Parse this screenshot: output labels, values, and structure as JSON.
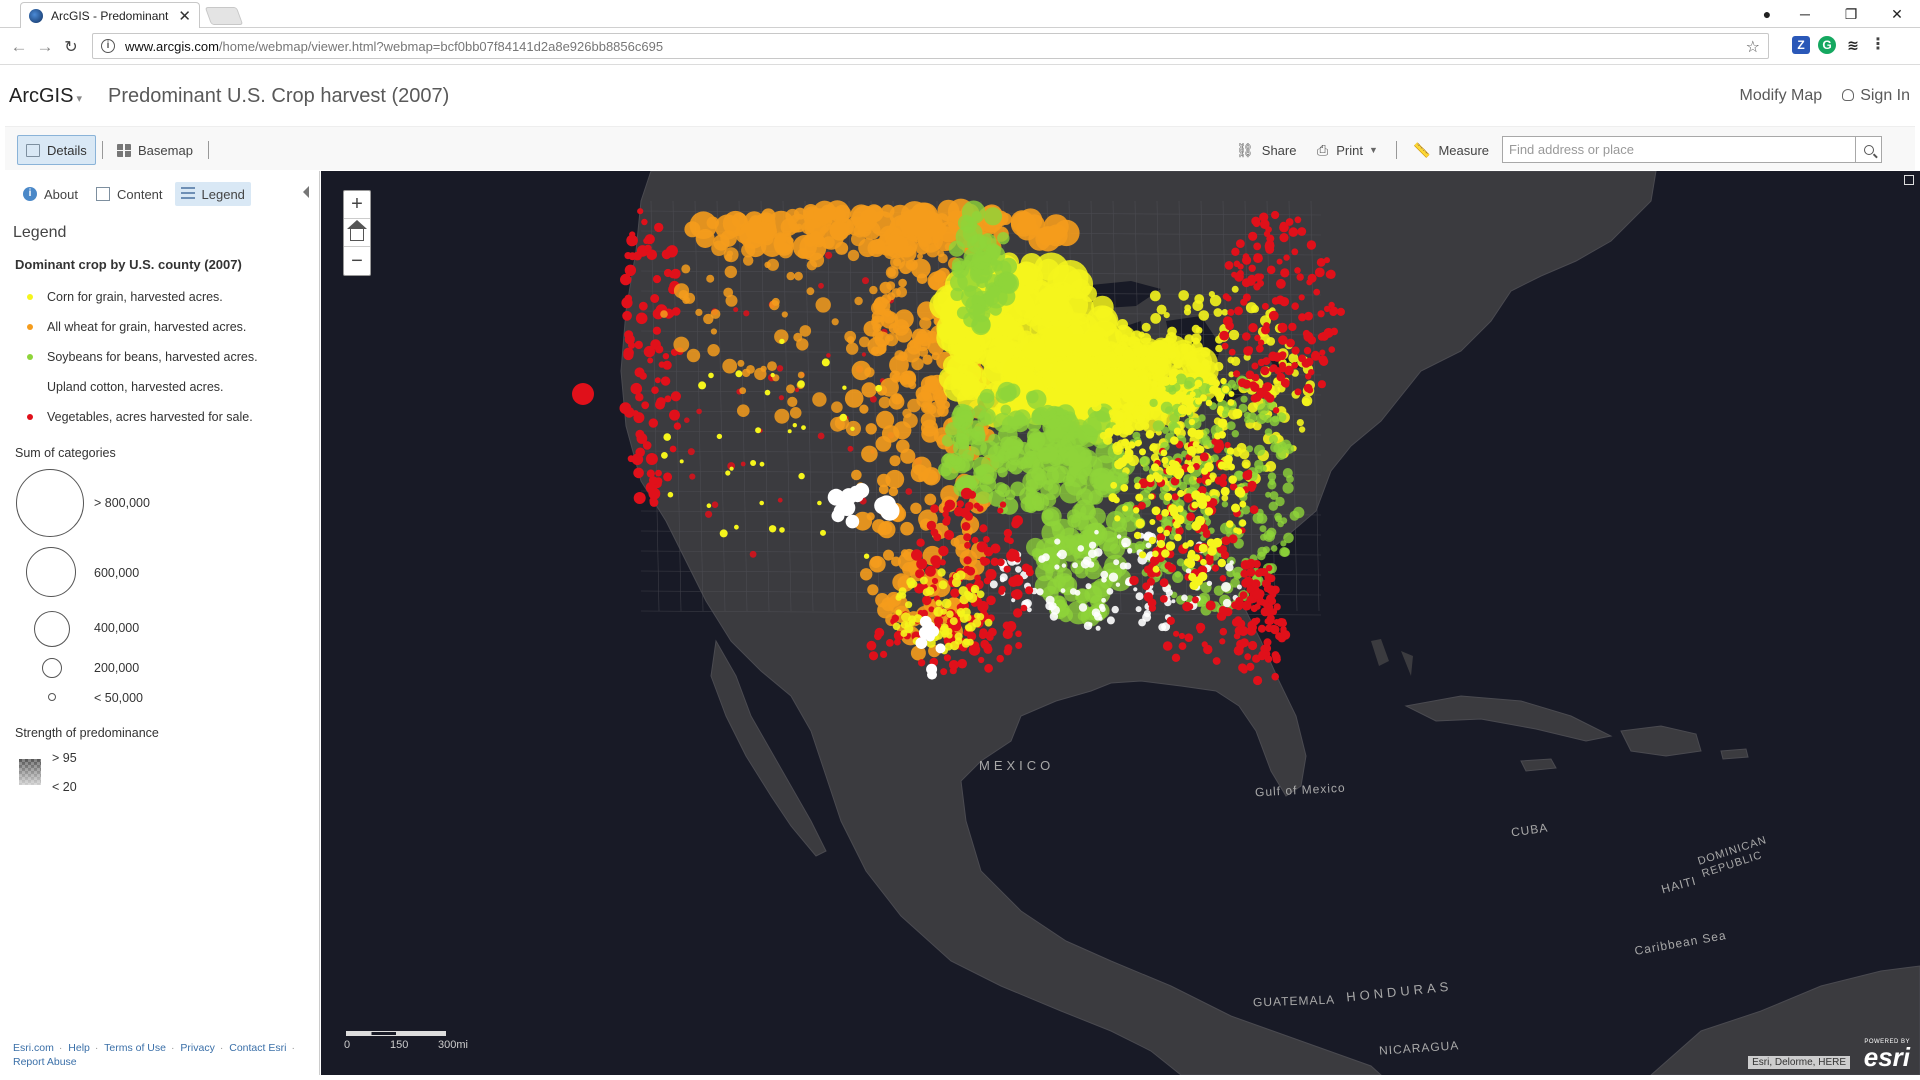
{
  "browser": {
    "tab_title": "ArcGIS - Predominant U.S...",
    "url_host": "www.arcgis.com",
    "url_path": "/home/webmap/viewer.html?webmap=bcf0bb07f84141d2a8e926bb8856c695"
  },
  "app": {
    "brand": "ArcGIS",
    "title": "Predominant U.S. Crop harvest (2007)",
    "modify_map": "Modify Map",
    "sign_in": "Sign In"
  },
  "toolbar": {
    "details": "Details",
    "basemap": "Basemap",
    "share": "Share",
    "print": "Print",
    "measure": "Measure",
    "search_placeholder": "Find address or place"
  },
  "panel": {
    "tabs": [
      "About",
      "Content",
      "Legend"
    ],
    "legend_heading": "Legend",
    "layer_title": "Dominant crop by U.S. county (2007)",
    "categories": [
      {
        "label": "Corn for grain, harvested acres.",
        "color": "#f5f51c"
      },
      {
        "label": "All wheat for grain, harvested acres.",
        "color": "#f59c1c"
      },
      {
        "label": "Soybeans for beans, harvested acres.",
        "color": "#8fd43a"
      },
      {
        "label": "Upland cotton, harvested acres.",
        "color": "#ffffff"
      },
      {
        "label": "Vegetables, acres harvested for sale.",
        "color": "#e0101a"
      }
    ],
    "size_heading": "Sum of categories",
    "sizes": [
      "> 800,000",
      "600,000",
      "400,000",
      "200,000",
      "< 50,000"
    ],
    "strength_heading": "Strength of predominance",
    "strength_high": "> 95",
    "strength_low": "< 20",
    "footer": [
      "Esri.com",
      "Help",
      "Terms of Use",
      "Privacy",
      "Contact Esri",
      "Report Abuse"
    ]
  },
  "map": {
    "labels": {
      "mexico": "MEXICO",
      "gulf": "Gulf of Mexico",
      "cuba": "CUBA",
      "dominican": "DOMINICAN REPUBLIC",
      "haiti": "HAITI",
      "caribbean": "Caribbean Sea",
      "guatemala": "GUATEMALA",
      "honduras": "HONDURAS",
      "nicaragua": "NICARAGUA"
    },
    "scale_labels": [
      "0",
      "150",
      "300mi"
    ],
    "attribution": "Esri, Delorme, HERE",
    "powered_by": "POWERED BY",
    "esri": "esri",
    "colors": {
      "land": "#3b3b3f",
      "water": "#181a26",
      "corn": "#f5f51c",
      "wheat": "#f59c1c",
      "soy": "#8fd43a",
      "cotton": "#ffffff",
      "veg": "#e0101a"
    }
  }
}
